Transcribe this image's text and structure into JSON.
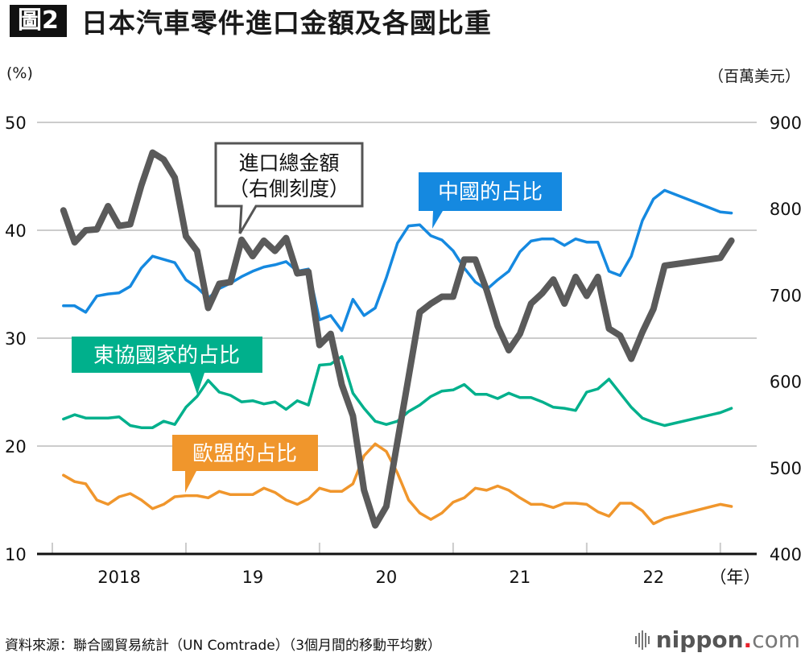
{
  "header": {
    "figure_badge": "圖2",
    "title": "日本汽車零件進口金額及各國比重"
  },
  "units": {
    "left": "(%)",
    "right": "（百萬美元）"
  },
  "footer": {
    "source": "資料來源：聯合國貿易統計（UN Comtrade）（3個月間的移動平均數）",
    "logo_brand": "nippon",
    "logo_dot": ".",
    "logo_tld": "com"
  },
  "annotations": {
    "total": [
      "進口總金額",
      "（右側刻度）"
    ],
    "china": "中國的占比",
    "asean": "東協國家的占比",
    "eu": "歐盟的占比"
  },
  "colors": {
    "total": "#5a5a5a",
    "china": "#1589e0",
    "asean": "#00b08c",
    "eu": "#f0962c",
    "grid": "#cccccc",
    "axis": "#111111"
  },
  "chart_data": {
    "type": "line",
    "title": "日本汽車零件進口金額及各國比重",
    "x_unit": "month index from Jan 2018 (0 = 2018-01)",
    "x_tick_labels": [
      "2018",
      "19",
      "20",
      "21",
      "22",
      "（年）"
    ],
    "x_range_months": [
      0,
      63
    ],
    "y_left": {
      "label": "(%)",
      "range": [
        10,
        50
      ],
      "ticks": [
        10,
        20,
        30,
        40,
        50
      ]
    },
    "y_right": {
      "label": "（百萬美元）",
      "range": [
        400,
        900
      ],
      "ticks": [
        400,
        500,
        600,
        700,
        800,
        900
      ]
    },
    "grid": true,
    "x": [
      1,
      2,
      3,
      4,
      5,
      6,
      7,
      8,
      9,
      10,
      11,
      12,
      13,
      14,
      15,
      16,
      17,
      18,
      19,
      20,
      21,
      22,
      23,
      24,
      25,
      26,
      27,
      28,
      29,
      30,
      31,
      32,
      33,
      34,
      35,
      36,
      37,
      38,
      39,
      40,
      41,
      42,
      43,
      44,
      45,
      46,
      47,
      48,
      49,
      50,
      51,
      52,
      53,
      54,
      55,
      60,
      61
    ],
    "series": [
      {
        "name": "進口總金額（右側刻度）",
        "axis": "right",
        "values": [
          798,
          761,
          775,
          776,
          803,
          780,
          782,
          827,
          865,
          857,
          836,
          768,
          751,
          685,
          713,
          715,
          764,
          745,
          763,
          751,
          766,
          725,
          727,
          642,
          655,
          596,
          560,
          474,
          433,
          455,
          530,
          605,
          680,
          690,
          698,
          698,
          741,
          741,
          706,
          664,
          636,
          655,
          690,
          702,
          718,
          690,
          721,
          699,
          721,
          661,
          653,
          626,
          657,
          684,
          734,
          743,
          763
        ]
      },
      {
        "name": "中國的占比",
        "axis": "left",
        "values": [
          33.0,
          33.0,
          32.4,
          33.9,
          34.1,
          34.2,
          34.8,
          36.5,
          37.6,
          37.3,
          37.0,
          35.4,
          34.7,
          33.7,
          34.6,
          35.1,
          35.7,
          36.2,
          36.6,
          36.8,
          37.1,
          36.2,
          36.4,
          31.7,
          32.1,
          30.7,
          33.6,
          32.1,
          32.8,
          35.6,
          38.8,
          40.4,
          40.5,
          39.5,
          39.1,
          38.1,
          36.5,
          35.2,
          34.5,
          35.4,
          36.2,
          38.0,
          39.0,
          39.2,
          39.2,
          38.6,
          39.2,
          38.9,
          38.9,
          36.2,
          35.8,
          37.6,
          40.9,
          42.9,
          43.7,
          41.7,
          41.6
        ]
      },
      {
        "name": "東協國家的占比",
        "axis": "left",
        "values": [
          22.5,
          22.9,
          22.6,
          22.6,
          22.6,
          22.7,
          21.9,
          21.7,
          21.7,
          22.3,
          22.0,
          23.6,
          24.6,
          26.1,
          25.0,
          24.7,
          24.1,
          24.2,
          23.9,
          24.1,
          23.4,
          24.2,
          23.8,
          27.5,
          27.6,
          28.3,
          24.9,
          23.5,
          22.3,
          22.0,
          22.3,
          23.2,
          23.8,
          24.6,
          25.1,
          25.2,
          25.7,
          24.8,
          24.8,
          24.4,
          24.9,
          24.5,
          24.5,
          24.1,
          23.6,
          23.5,
          23.3,
          25.0,
          25.3,
          26.2,
          24.9,
          23.6,
          22.6,
          22.2,
          21.9,
          23.1,
          23.5
        ]
      },
      {
        "name": "歐盟的占比",
        "axis": "left",
        "values": [
          17.3,
          16.7,
          16.5,
          15.0,
          14.6,
          15.3,
          15.6,
          15.0,
          14.2,
          14.6,
          15.3,
          15.4,
          15.4,
          15.2,
          15.8,
          15.5,
          15.5,
          15.5,
          16.1,
          15.7,
          15.0,
          14.6,
          15.1,
          16.1,
          15.8,
          15.8,
          16.5,
          19.1,
          20.2,
          19.5,
          17.5,
          15.0,
          13.8,
          13.2,
          13.8,
          14.8,
          15.2,
          16.1,
          15.9,
          16.3,
          15.9,
          15.2,
          14.6,
          14.6,
          14.3,
          14.7,
          14.7,
          14.6,
          13.9,
          13.5,
          14.7,
          14.7,
          14.0,
          12.8,
          13.3,
          14.6,
          14.4
        ]
      }
    ],
    "legend": "callout labels beside each line"
  }
}
